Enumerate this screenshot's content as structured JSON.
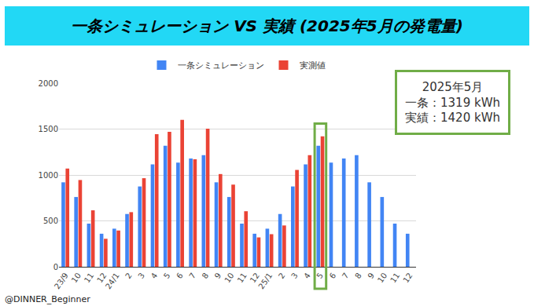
{
  "chart_data": {
    "type": "bar",
    "title": "一条シミュレーション VS 実績 (2025年5月の発電量)",
    "categories": [
      "23/9",
      "10",
      "11",
      "12",
      "24/1",
      "2",
      "3",
      "4",
      "5",
      "6",
      "7",
      "8",
      "9",
      "10",
      "11",
      "12",
      "25/1",
      "2",
      "3",
      "4",
      "5",
      "6",
      "7",
      "8",
      "9",
      "10",
      "11",
      "12"
    ],
    "series": [
      {
        "name": "一条シミュレーション",
        "color": "#4285f4",
        "values": [
          920,
          760,
          470,
          360,
          415,
          575,
          875,
          1115,
          1319,
          1135,
          1180,
          1215,
          920,
          760,
          470,
          360,
          415,
          575,
          875,
          1115,
          1319,
          1135,
          1180,
          1215,
          920,
          760,
          470,
          360
        ]
      },
      {
        "name": "実測値",
        "color": "#ea4335",
        "values": [
          1070,
          945,
          615,
          305,
          395,
          595,
          965,
          1445,
          1470,
          1600,
          1170,
          1505,
          1010,
          895,
          605,
          320,
          355,
          450,
          1055,
          1215,
          1420,
          null,
          null,
          null,
          null,
          null,
          null,
          null
        ]
      }
    ],
    "ylim": [
      0,
      2000
    ],
    "yticks": [
      0,
      500,
      1000,
      1500,
      2000
    ],
    "grid": true,
    "legend": "top",
    "annotations": [
      "2025年5月",
      "一条：1319 kWh",
      "実績：1420 kWh",
      "@DINNER_Beginner"
    ]
  }
}
